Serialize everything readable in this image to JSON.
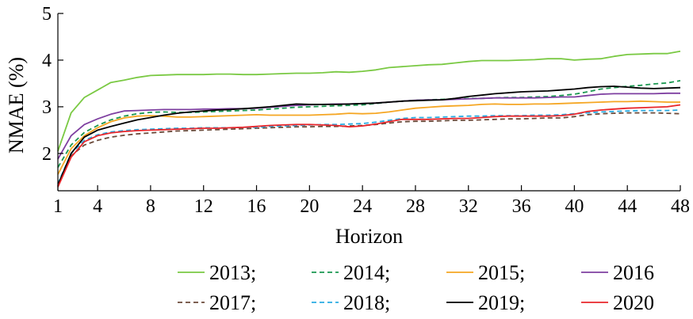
{
  "chart_data": {
    "type": "line",
    "title": "",
    "xlabel": "Horizon",
    "ylabel": "NMAE (%)",
    "xlim": [
      1,
      48
    ],
    "ylim": [
      1.2,
      5
    ],
    "x_ticks": [
      1,
      4,
      8,
      12,
      16,
      20,
      24,
      28,
      32,
      36,
      40,
      44,
      48
    ],
    "y_ticks": [
      2,
      3,
      4,
      5
    ],
    "grid": false,
    "legend_position": "bottom",
    "x": [
      1,
      2,
      3,
      4,
      5,
      6,
      7,
      8,
      9,
      10,
      11,
      12,
      13,
      14,
      15,
      16,
      17,
      18,
      19,
      20,
      21,
      22,
      23,
      24,
      25,
      26,
      27,
      28,
      29,
      30,
      31,
      32,
      33,
      34,
      35,
      36,
      37,
      38,
      39,
      40,
      41,
      42,
      43,
      44,
      45,
      46,
      47,
      48
    ],
    "series": [
      {
        "name": "2013",
        "legend_label": "2013;",
        "color": "#7ac943",
        "dash": "solid",
        "values": [
          2.05,
          2.87,
          3.2,
          3.36,
          3.52,
          3.57,
          3.63,
          3.67,
          3.68,
          3.69,
          3.69,
          3.69,
          3.7,
          3.7,
          3.69,
          3.69,
          3.7,
          3.71,
          3.72,
          3.72,
          3.73,
          3.75,
          3.74,
          3.76,
          3.79,
          3.84,
          3.86,
          3.88,
          3.9,
          3.91,
          3.94,
          3.97,
          3.99,
          3.99,
          3.99,
          4.0,
          4.01,
          4.03,
          4.03,
          4.0,
          4.02,
          4.03,
          4.08,
          4.12,
          4.13,
          4.14,
          4.14,
          4.19
        ]
      },
      {
        "name": "2014",
        "legend_label": "2014;",
        "color": "#1a9850",
        "dash": "dashed",
        "values": [
          1.7,
          2.18,
          2.45,
          2.6,
          2.72,
          2.8,
          2.85,
          2.88,
          2.89,
          2.88,
          2.88,
          2.89,
          2.9,
          2.91,
          2.92,
          2.93,
          2.95,
          2.97,
          2.99,
          3.0,
          3.01,
          3.02,
          3.03,
          3.04,
          3.07,
          3.1,
          3.12,
          3.14,
          3.15,
          3.16,
          3.17,
          3.18,
          3.18,
          3.19,
          3.2,
          3.2,
          3.21,
          3.22,
          3.24,
          3.27,
          3.32,
          3.38,
          3.41,
          3.44,
          3.46,
          3.49,
          3.51,
          3.56
        ]
      },
      {
        "name": "2015",
        "legend_label": "2015;",
        "color": "#f5a623",
        "dash": "solid",
        "values": [
          1.55,
          2.1,
          2.38,
          2.55,
          2.68,
          2.76,
          2.8,
          2.81,
          2.8,
          2.78,
          2.78,
          2.79,
          2.8,
          2.81,
          2.82,
          2.83,
          2.82,
          2.82,
          2.82,
          2.82,
          2.83,
          2.84,
          2.86,
          2.85,
          2.86,
          2.89,
          2.93,
          2.97,
          2.99,
          3.01,
          3.02,
          3.03,
          3.05,
          3.06,
          3.05,
          3.05,
          3.06,
          3.06,
          3.07,
          3.08,
          3.09,
          3.1,
          3.11,
          3.11,
          3.12,
          3.11,
          3.1,
          3.1
        ]
      },
      {
        "name": "2016",
        "legend_label": "2016",
        "color": "#7e3fa0",
        "dash": "solid",
        "values": [
          1.88,
          2.38,
          2.62,
          2.74,
          2.84,
          2.91,
          2.92,
          2.93,
          2.94,
          2.94,
          2.94,
          2.95,
          2.95,
          2.96,
          2.96,
          2.97,
          2.99,
          3.01,
          3.03,
          3.04,
          3.05,
          3.06,
          3.06,
          3.07,
          3.08,
          3.1,
          3.12,
          3.14,
          3.15,
          3.15,
          3.16,
          3.17,
          3.18,
          3.19,
          3.19,
          3.19,
          3.19,
          3.2,
          3.21,
          3.21,
          3.24,
          3.27,
          3.28,
          3.28,
          3.28,
          3.28,
          3.29,
          3.29
        ]
      },
      {
        "name": "2017",
        "legend_label": "2017;",
        "color": "#6b4a3a",
        "dash": "dashed",
        "values": [
          1.3,
          1.95,
          2.18,
          2.28,
          2.35,
          2.39,
          2.42,
          2.44,
          2.46,
          2.48,
          2.49,
          2.5,
          2.51,
          2.52,
          2.53,
          2.54,
          2.55,
          2.56,
          2.57,
          2.57,
          2.58,
          2.58,
          2.59,
          2.6,
          2.62,
          2.65,
          2.68,
          2.69,
          2.69,
          2.7,
          2.71,
          2.71,
          2.72,
          2.73,
          2.74,
          2.74,
          2.75,
          2.76,
          2.76,
          2.79,
          2.83,
          2.85,
          2.86,
          2.87,
          2.87,
          2.87,
          2.86,
          2.85
        ]
      },
      {
        "name": "2018",
        "legend_label": "2018;",
        "color": "#29abe2",
        "dash": "dashed",
        "values": [
          1.35,
          2.0,
          2.28,
          2.4,
          2.46,
          2.49,
          2.51,
          2.52,
          2.53,
          2.54,
          2.54,
          2.55,
          2.55,
          2.55,
          2.56,
          2.56,
          2.58,
          2.59,
          2.6,
          2.61,
          2.62,
          2.62,
          2.63,
          2.64,
          2.67,
          2.71,
          2.75,
          2.77,
          2.77,
          2.78,
          2.79,
          2.8,
          2.8,
          2.81,
          2.81,
          2.81,
          2.82,
          2.82,
          2.83,
          2.85,
          2.87,
          2.89,
          2.9,
          2.91,
          2.92,
          2.92,
          2.92,
          2.93
        ]
      },
      {
        "name": "2019",
        "legend_label": "2019;",
        "color": "#000000",
        "dash": "solid",
        "values": [
          1.32,
          2.0,
          2.35,
          2.5,
          2.58,
          2.65,
          2.72,
          2.77,
          2.82,
          2.86,
          2.89,
          2.91,
          2.93,
          2.94,
          2.96,
          2.98,
          3.0,
          3.03,
          3.06,
          3.05,
          3.05,
          3.05,
          3.06,
          3.07,
          3.08,
          3.1,
          3.12,
          3.13,
          3.14,
          3.15,
          3.18,
          3.22,
          3.25,
          3.28,
          3.3,
          3.32,
          3.33,
          3.34,
          3.36,
          3.38,
          3.41,
          3.43,
          3.44,
          3.42,
          3.4,
          3.39,
          3.4,
          3.41
        ]
      },
      {
        "name": "2020",
        "legend_label": "2020",
        "color": "#e8262b",
        "dash": "solid",
        "values": [
          1.28,
          1.92,
          2.25,
          2.38,
          2.44,
          2.47,
          2.49,
          2.5,
          2.51,
          2.52,
          2.53,
          2.54,
          2.54,
          2.55,
          2.56,
          2.58,
          2.6,
          2.61,
          2.62,
          2.62,
          2.61,
          2.6,
          2.57,
          2.59,
          2.63,
          2.68,
          2.73,
          2.73,
          2.73,
          2.74,
          2.75,
          2.75,
          2.77,
          2.79,
          2.8,
          2.8,
          2.8,
          2.8,
          2.81,
          2.84,
          2.9,
          2.93,
          2.95,
          2.97,
          2.98,
          2.99,
          3.0,
          3.04
        ]
      }
    ]
  }
}
